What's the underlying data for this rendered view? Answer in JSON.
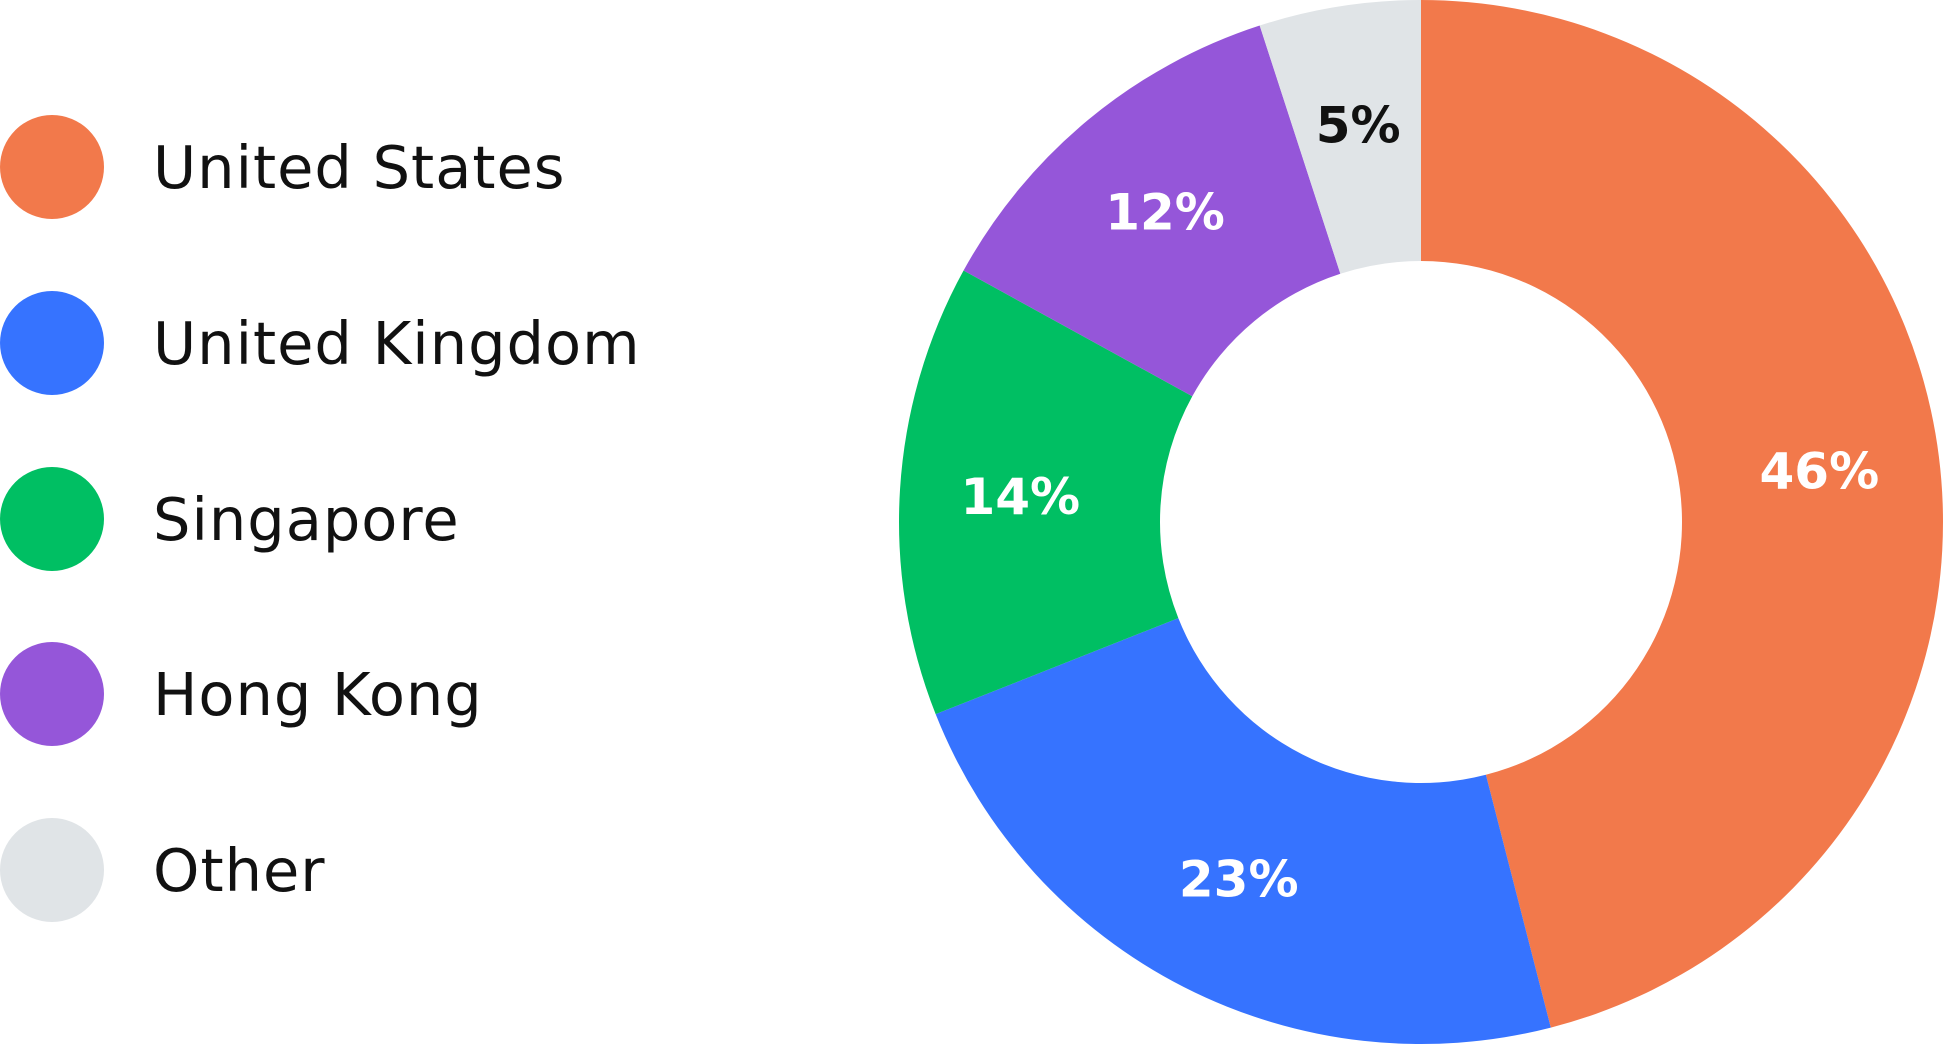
{
  "chart_data": {
    "type": "pie",
    "variant": "donut",
    "title": "",
    "legend_position": "left",
    "slices": [
      {
        "name": "United States",
        "value": 46,
        "label": "46%",
        "color": "#F2794B",
        "label_color": "#FFFFFF"
      },
      {
        "name": "United Kingdom",
        "value": 23,
        "label": "23%",
        "color": "#3673FF",
        "label_color": "#FFFFFF"
      },
      {
        "name": "Singapore",
        "value": 14,
        "label": "14%",
        "color": "#00BF63",
        "label_color": "#FFFFFF"
      },
      {
        "name": "Hong Kong",
        "value": 12,
        "label": "12%",
        "color": "#9556D9",
        "label_color": "#FFFFFF"
      },
      {
        "name": "Other",
        "value": 5,
        "label": "5%",
        "color": "#E0E4E7",
        "label_color": "#111111"
      }
    ]
  }
}
